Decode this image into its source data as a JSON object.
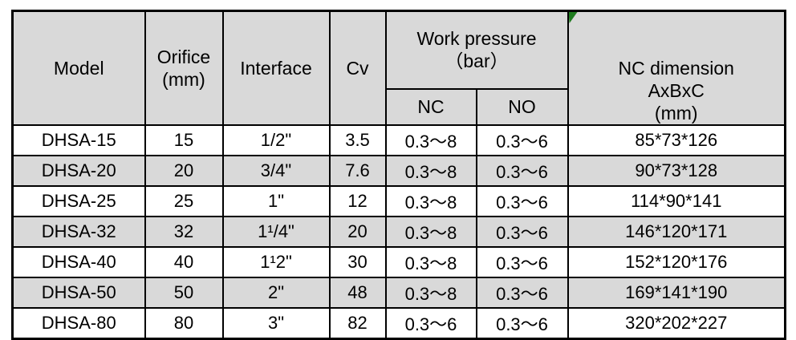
{
  "table": {
    "headers": {
      "model": "Model",
      "orifice": "Orifice\n(mm)",
      "interface": "Interface",
      "cv": "Cv",
      "work_pressure": "Work pressure\n（bar）",
      "nc": "NC",
      "no": "NO",
      "nc_dimension": "NC dimension\nAxBxC\n(mm)"
    },
    "rows": [
      {
        "model": "DHSA-15",
        "orifice": "15",
        "interface": "1/2\"",
        "cv": "3.5",
        "nc": "0.3～8",
        "no": "0.3～6",
        "dimension": "85*73*126"
      },
      {
        "model": "DHSA-20",
        "orifice": "20",
        "interface": "3/4\"",
        "cv": "7.6",
        "nc": "0.3～8",
        "no": "0.3～6",
        "dimension": "90*73*128"
      },
      {
        "model": "DHSA-25",
        "orifice": "25",
        "interface": "1\"",
        "cv": "12",
        "nc": "0.3～8",
        "no": "0.3～6",
        "dimension": "114*90*141"
      },
      {
        "model": "DHSA-32",
        "orifice": "32",
        "interface": "1¹/4\"",
        "cv": "20",
        "nc": "0.3～8",
        "no": "0.3～6",
        "dimension": "146*120*171"
      },
      {
        "model": "DHSA-40",
        "orifice": "40",
        "interface": "1¹2\"",
        "cv": "30",
        "nc": "0.3～8",
        "no": "0.3～6",
        "dimension": "152*120*176"
      },
      {
        "model": "DHSA-50",
        "orifice": "50",
        "interface": "2\"",
        "cv": "48",
        "nc": "0.3～8",
        "no": "0.3～6",
        "dimension": "169*141*190"
      },
      {
        "model": "DHSA-80",
        "orifice": "80",
        "interface": "3\"",
        "cv": "82",
        "nc": "0.3～6",
        "no": "0.3～6",
        "dimension": "320*202*227"
      }
    ],
    "colors": {
      "header_bg": "#d9d9d9",
      "row_alt_bg": "#d9d9d9",
      "row_bg": "#ffffff",
      "border": "#000000",
      "marker_green": "#1e7b1e"
    }
  }
}
